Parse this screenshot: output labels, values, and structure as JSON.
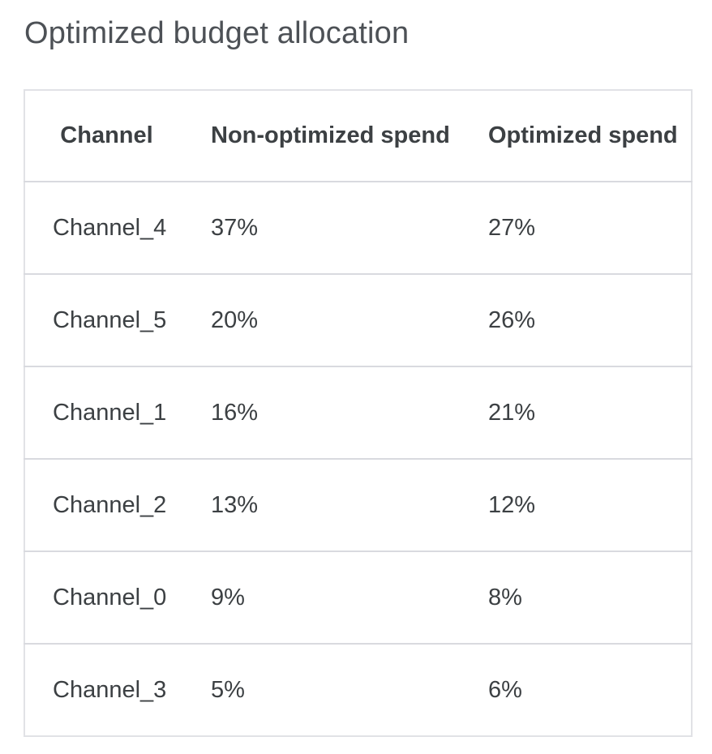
{
  "page": {
    "title": "Optimized budget allocation"
  },
  "colors": {
    "title_text": "#4d5156",
    "table_text": "#3c4043",
    "border": "#d9dadf"
  },
  "table": {
    "columns": [
      "Channel",
      "Non-optimized spend",
      "Optimized spend"
    ],
    "rows": [
      {
        "channel": "Channel_4",
        "non_optimized": "37%",
        "optimized": "27%"
      },
      {
        "channel": "Channel_5",
        "non_optimized": "20%",
        "optimized": "26%"
      },
      {
        "channel": "Channel_1",
        "non_optimized": "16%",
        "optimized": "21%"
      },
      {
        "channel": "Channel_2",
        "non_optimized": "13%",
        "optimized": "12%"
      },
      {
        "channel": "Channel_0",
        "non_optimized": "9%",
        "optimized": "8%"
      },
      {
        "channel": "Channel_3",
        "non_optimized": "5%",
        "optimized": "6%"
      }
    ]
  },
  "chart_data": {
    "type": "table",
    "title": "Optimized budget allocation",
    "categories": [
      "Channel_4",
      "Channel_5",
      "Channel_1",
      "Channel_2",
      "Channel_0",
      "Channel_3"
    ],
    "series": [
      {
        "name": "Non-optimized spend",
        "unit": "%",
        "values": [
          37,
          20,
          16,
          13,
          9,
          5
        ]
      },
      {
        "name": "Optimized spend",
        "unit": "%",
        "values": [
          27,
          26,
          21,
          12,
          8,
          6
        ]
      }
    ],
    "layout": {
      "header_row": true,
      "grid": "horizontal-row-dividers",
      "legend": "none"
    }
  }
}
